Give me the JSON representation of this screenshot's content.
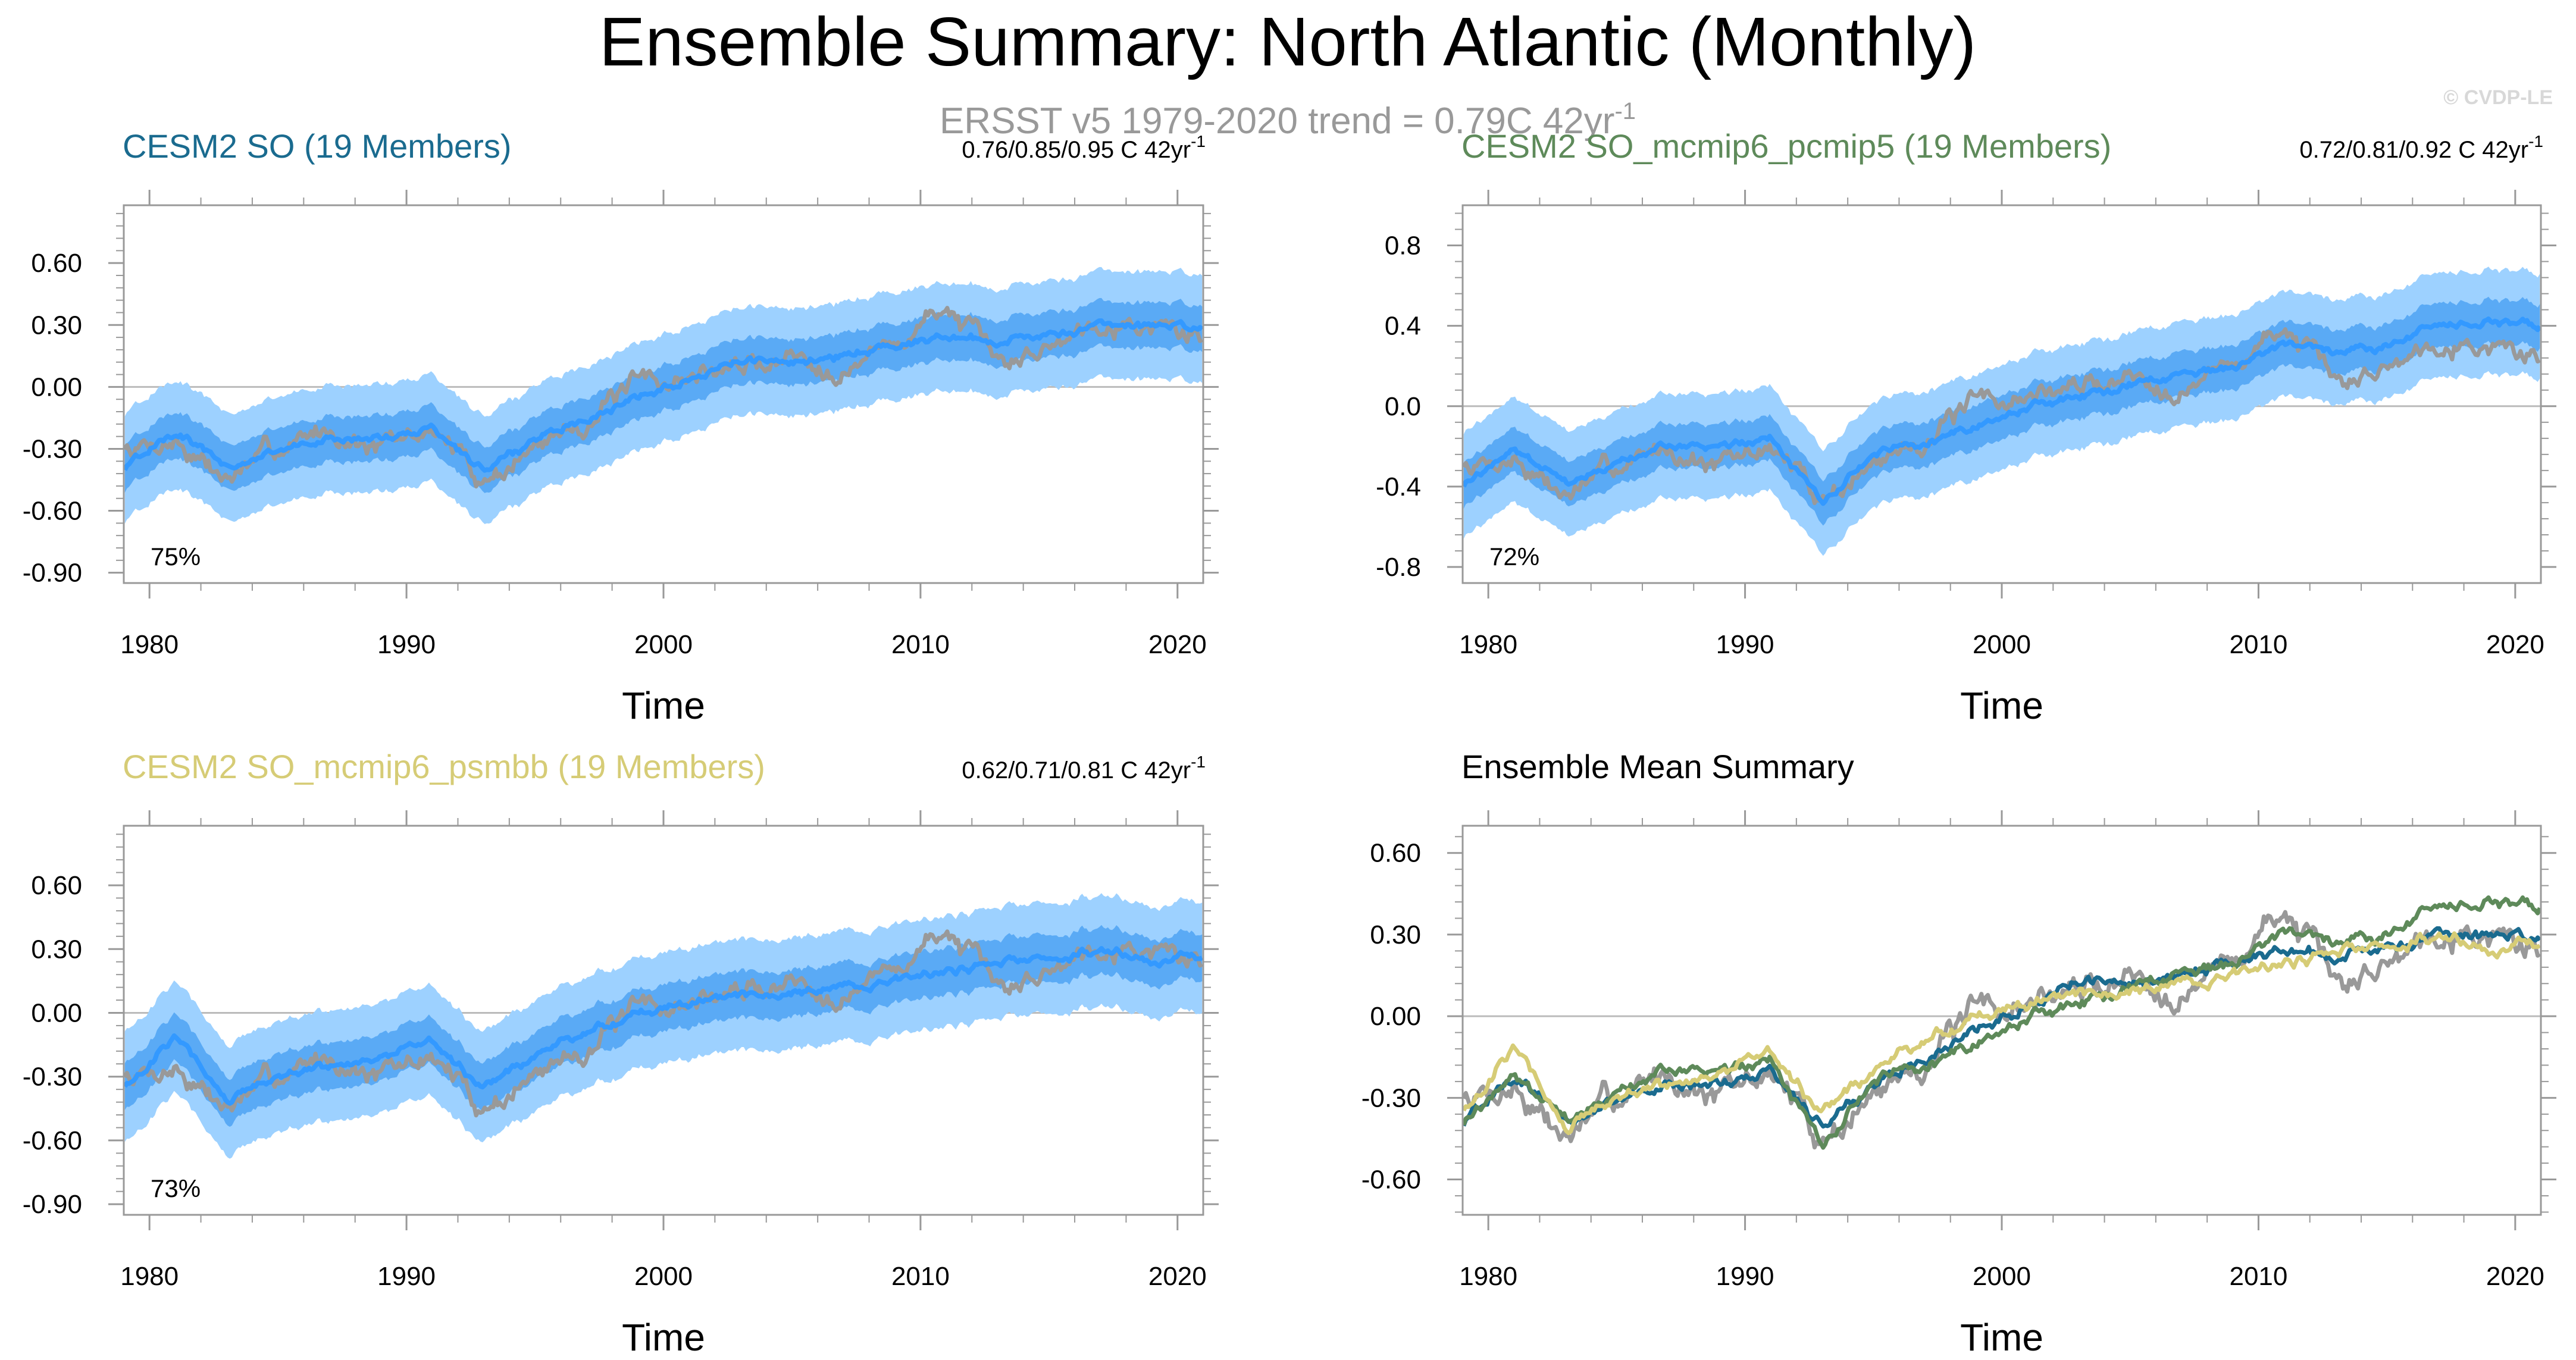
{
  "figure": {
    "title": "Ensemble Summary: North Atlantic (Monthly)",
    "subtitle": "ERSST v5 1979-2020 trend = 0.79C 42yr",
    "subtitle_sup": "-1",
    "watermark": "© CVDP-LE"
  },
  "colors": {
    "obs": "#999999",
    "ens_range": "#9dd1ff",
    "ens_iqr": "#5aaaf5",
    "ens_mean": "#3399ff",
    "cesm2_so": "#1a6b8f",
    "pcmip5": "#5e8a5a",
    "psmbb": "#d6cc76",
    "zero_line": "#bbbbbb",
    "axis": "#999999"
  },
  "chart_data": [
    {
      "type": "line",
      "panel": "CESM2 SO",
      "title": "CESM2 SO (19 Members)",
      "title_color": "#1a6b8f",
      "trend_text": "0.76/0.85/0.95 C 42yr",
      "trend_sup": "-1",
      "pct_label": "75%",
      "xlabel": "Time",
      "x_ticks": [
        "1980",
        "1990",
        "2000",
        "2010",
        "2020"
      ],
      "xlim": [
        1979,
        2021
      ],
      "y_ticks": [
        "0.60",
        "0.30",
        "0.00",
        "-0.30",
        "-0.60",
        "-0.90"
      ],
      "ylim": [
        -0.95,
        0.88
      ],
      "series": [
        {
          "name": "ERSST v5 observations",
          "x": [
            1979,
            1981,
            1983,
            1985,
            1987,
            1989,
            1991,
            1993,
            1995,
            1997,
            1999,
            2001,
            2003,
            2005,
            2007,
            2009,
            2011,
            2013,
            2015,
            2017,
            2019,
            2021
          ],
          "values": [
            -0.3,
            -0.25,
            -0.45,
            -0.3,
            -0.2,
            -0.3,
            -0.2,
            -0.45,
            -0.3,
            -0.15,
            0.0,
            0.05,
            0.1,
            0.15,
            0.1,
            0.2,
            0.4,
            0.1,
            0.2,
            0.35,
            0.3,
            0.25
          ]
        },
        {
          "name": "ensemble mean",
          "x": [
            1979,
            1981,
            1983,
            1985,
            1987,
            1989,
            1991,
            1993,
            1995,
            1997,
            1999,
            2001,
            2003,
            2005,
            2007,
            2009,
            2011,
            2013,
            2015,
            2017,
            2019,
            2021
          ],
          "values": [
            -0.4,
            -0.2,
            -0.4,
            -0.3,
            -0.25,
            -0.25,
            -0.2,
            -0.4,
            -0.25,
            -0.15,
            -0.05,
            0.05,
            0.12,
            0.12,
            0.15,
            0.2,
            0.25,
            0.22,
            0.25,
            0.3,
            0.3,
            0.28
          ]
        }
      ]
    },
    {
      "type": "line",
      "panel": "CESM2 SO_mcmip6_pcmip5",
      "title": "CESM2 SO_mcmip6_pcmip5 (19 Members)",
      "title_color": "#5e8a5a",
      "trend_text": "0.72/0.81/0.92 C 42yr",
      "trend_sup": "-1",
      "pct_label": "72%",
      "xlabel": "Time",
      "x_ticks": [
        "1980",
        "1990",
        "2000",
        "2010",
        "2020"
      ],
      "xlim": [
        1979,
        2021
      ],
      "y_ticks": [
        "0.8",
        "0.4",
        "0.0",
        "-0.4",
        "-0.8"
      ],
      "ylim": [
        -0.88,
        1.0
      ],
      "series": [
        {
          "name": "ERSST v5 observations",
          "x": [
            1979,
            1981,
            1983,
            1985,
            1987,
            1989,
            1991,
            1993,
            1995,
            1997,
            1999,
            2001,
            2003,
            2005,
            2007,
            2009,
            2011,
            2013,
            2015,
            2017,
            2019,
            2021
          ],
          "values": [
            -0.3,
            -0.25,
            -0.45,
            -0.3,
            -0.2,
            -0.3,
            -0.2,
            -0.45,
            -0.3,
            -0.15,
            0.0,
            0.05,
            0.1,
            0.15,
            0.1,
            0.2,
            0.4,
            0.1,
            0.2,
            0.35,
            0.3,
            0.25
          ]
        },
        {
          "name": "ensemble mean",
          "x": [
            1979,
            1981,
            1983,
            1985,
            1987,
            1989,
            1991,
            1993,
            1995,
            1997,
            1999,
            2001,
            2003,
            2005,
            2007,
            2009,
            2011,
            2013,
            2015,
            2017,
            2019,
            2021
          ],
          "values": [
            -0.4,
            -0.2,
            -0.4,
            -0.3,
            -0.2,
            -0.2,
            -0.15,
            -0.5,
            -0.25,
            -0.2,
            -0.1,
            0.0,
            0.05,
            0.1,
            0.15,
            0.2,
            0.3,
            0.25,
            0.3,
            0.4,
            0.42,
            0.4
          ]
        }
      ]
    },
    {
      "type": "line",
      "panel": "CESM2 SO_mcmip6_psmbb",
      "title": "CESM2 SO_mcmip6_psmbb (19 Members)",
      "title_color": "#d6cc76",
      "trend_text": "0.62/0.71/0.81 C 42yr",
      "trend_sup": "-1",
      "pct_label": "73%",
      "xlabel": "Time",
      "x_ticks": [
        "1980",
        "1990",
        "2000",
        "2010",
        "2020"
      ],
      "xlim": [
        1979,
        2021
      ],
      "y_ticks": [
        "0.60",
        "0.30",
        "0.00",
        "-0.30",
        "-0.60",
        "-0.90"
      ],
      "ylim": [
        -0.95,
        0.88
      ],
      "series": [
        {
          "name": "ERSST v5 observations",
          "x": [
            1979,
            1981,
            1983,
            1985,
            1987,
            1989,
            1991,
            1993,
            1995,
            1997,
            1999,
            2001,
            2003,
            2005,
            2007,
            2009,
            2011,
            2013,
            2015,
            2017,
            2019,
            2021
          ],
          "values": [
            -0.3,
            -0.25,
            -0.45,
            -0.3,
            -0.2,
            -0.3,
            -0.2,
            -0.45,
            -0.3,
            -0.15,
            0.0,
            0.05,
            0.1,
            0.15,
            0.1,
            0.2,
            0.4,
            0.1,
            0.2,
            0.35,
            0.3,
            0.25
          ]
        },
        {
          "name": "ensemble mean",
          "x": [
            1979,
            1981,
            1983,
            1985,
            1987,
            1989,
            1991,
            1993,
            1995,
            1997,
            1999,
            2001,
            2003,
            2005,
            2007,
            2009,
            2011,
            2013,
            2015,
            2017,
            2019,
            2021
          ],
          "values": [
            -0.35,
            -0.1,
            -0.4,
            -0.3,
            -0.25,
            -0.2,
            -0.15,
            -0.35,
            -0.2,
            -0.1,
            0.0,
            0.05,
            0.08,
            0.1,
            0.12,
            0.15,
            0.2,
            0.22,
            0.25,
            0.3,
            0.25,
            0.25
          ]
        }
      ]
    },
    {
      "type": "line",
      "panel": "Ensemble Mean Summary",
      "title": "Ensemble Mean Summary",
      "title_color": "#000000",
      "xlabel": "Time",
      "x_ticks": [
        "1980",
        "1990",
        "2000",
        "2010",
        "2020"
      ],
      "xlim": [
        1979,
        2021
      ],
      "y_ticks": [
        "0.60",
        "0.30",
        "0.00",
        "-0.30",
        "-0.60"
      ],
      "ylim": [
        -0.73,
        0.7
      ],
      "series": [
        {
          "name": "ERSST v5",
          "color": "#999999",
          "x": [
            1979,
            1981,
            1983,
            1985,
            1987,
            1989,
            1991,
            1993,
            1995,
            1997,
            1999,
            2001,
            2003,
            2005,
            2007,
            2009,
            2011,
            2013,
            2015,
            2017,
            2019,
            2021
          ],
          "values": [
            -0.3,
            -0.25,
            -0.45,
            -0.3,
            -0.2,
            -0.3,
            -0.2,
            -0.45,
            -0.3,
            -0.15,
            0.0,
            0.05,
            0.1,
            0.15,
            0.1,
            0.2,
            0.4,
            0.1,
            0.2,
            0.35,
            0.3,
            0.25
          ]
        },
        {
          "name": "CESM2 SO",
          "color": "#1a6b8f",
          "x": [
            1979,
            1981,
            1983,
            1985,
            1987,
            1989,
            1991,
            1993,
            1995,
            1997,
            1999,
            2001,
            2003,
            2005,
            2007,
            2009,
            2011,
            2013,
            2015,
            2017,
            2019,
            2021
          ],
          "values": [
            -0.4,
            -0.2,
            -0.4,
            -0.3,
            -0.25,
            -0.25,
            -0.2,
            -0.4,
            -0.25,
            -0.15,
            -0.05,
            0.05,
            0.12,
            0.12,
            0.15,
            0.2,
            0.25,
            0.22,
            0.25,
            0.3,
            0.3,
            0.28
          ]
        },
        {
          "name": "CESM2 SO_mcmip6_pcmip5",
          "color": "#5e8a5a",
          "x": [
            1979,
            1981,
            1983,
            1985,
            1987,
            1989,
            1991,
            1993,
            1995,
            1997,
            1999,
            2001,
            2003,
            2005,
            2007,
            2009,
            2011,
            2013,
            2015,
            2017,
            2019,
            2021
          ],
          "values": [
            -0.4,
            -0.2,
            -0.4,
            -0.3,
            -0.2,
            -0.2,
            -0.15,
            -0.5,
            -0.25,
            -0.2,
            -0.1,
            0.0,
            0.05,
            0.1,
            0.15,
            0.2,
            0.3,
            0.25,
            0.3,
            0.4,
            0.42,
            0.4
          ]
        },
        {
          "name": "CESM2 SO_mcmip6_psmbb",
          "color": "#d6cc76",
          "x": [
            1979,
            1981,
            1983,
            1985,
            1987,
            1989,
            1991,
            1993,
            1995,
            1997,
            1999,
            2001,
            2003,
            2005,
            2007,
            2009,
            2011,
            2013,
            2015,
            2017,
            2019,
            2021
          ],
          "values": [
            -0.35,
            -0.1,
            -0.4,
            -0.3,
            -0.25,
            -0.2,
            -0.15,
            -0.35,
            -0.2,
            -0.1,
            0.0,
            0.05,
            0.08,
            0.1,
            0.12,
            0.15,
            0.2,
            0.22,
            0.25,
            0.3,
            0.25,
            0.25
          ]
        }
      ]
    }
  ]
}
